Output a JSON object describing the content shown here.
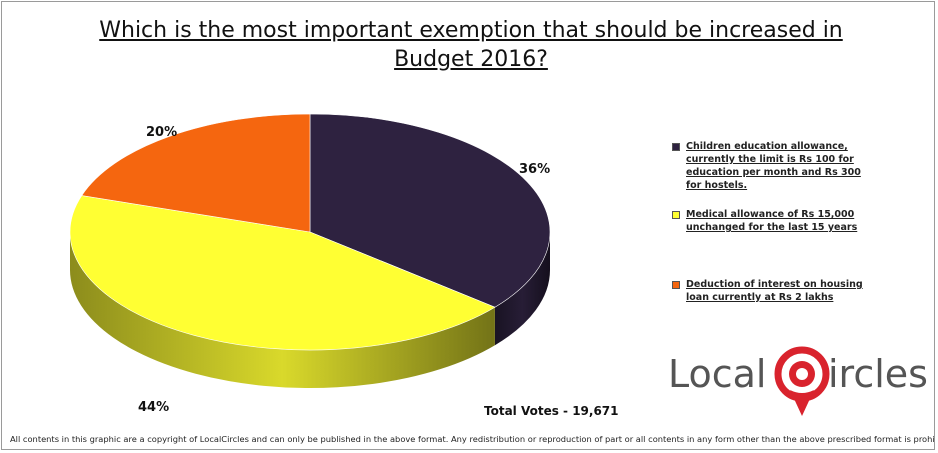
{
  "title": "Which is the most important exemption that should be increased in Budget 2016?",
  "chart_data": {
    "type": "pie",
    "title": "Which is the most important exemption that should be increased in Budget 2016?",
    "categories": [
      "Children education allowance, currently the limit is Rs 100 for education per month and Rs 300 for hostels.",
      "Medical allowance of Rs 15,000 unchanged for the last 15 years",
      "Deduction of interest on housing loan currently at Rs 2 lakhs"
    ],
    "values": [
      36,
      44,
      20
    ],
    "labels": [
      "36%",
      "44%",
      "20%"
    ],
    "colors": [
      "#2e2240",
      "#ffff33",
      "#f5660f"
    ],
    "legend_position": "right"
  },
  "legend": [
    {
      "label": "Children education allowance, currently the limit is Rs 100 for education per month and Rs 300 for hostels.",
      "color": "#2e2240"
    },
    {
      "label": "Medical allowance  of Rs 15,000 unchanged for the last 15 years",
      "color": "#ffff33"
    },
    {
      "label": "Deduction of interest on housing loan currently at Rs 2 lakhs",
      "color": "#f5660f"
    }
  ],
  "total_votes": "Total Votes - 19,671",
  "logo": {
    "part1": "Local",
    "part2": "ircles",
    "accent": "#d9232d"
  },
  "copyright": "All contents in this graphic are a copyright of LocalCircles and can only be published in the above format. Any redistribution or reproduction of part or all contents in any form other than the above prescribed format is prohibited."
}
